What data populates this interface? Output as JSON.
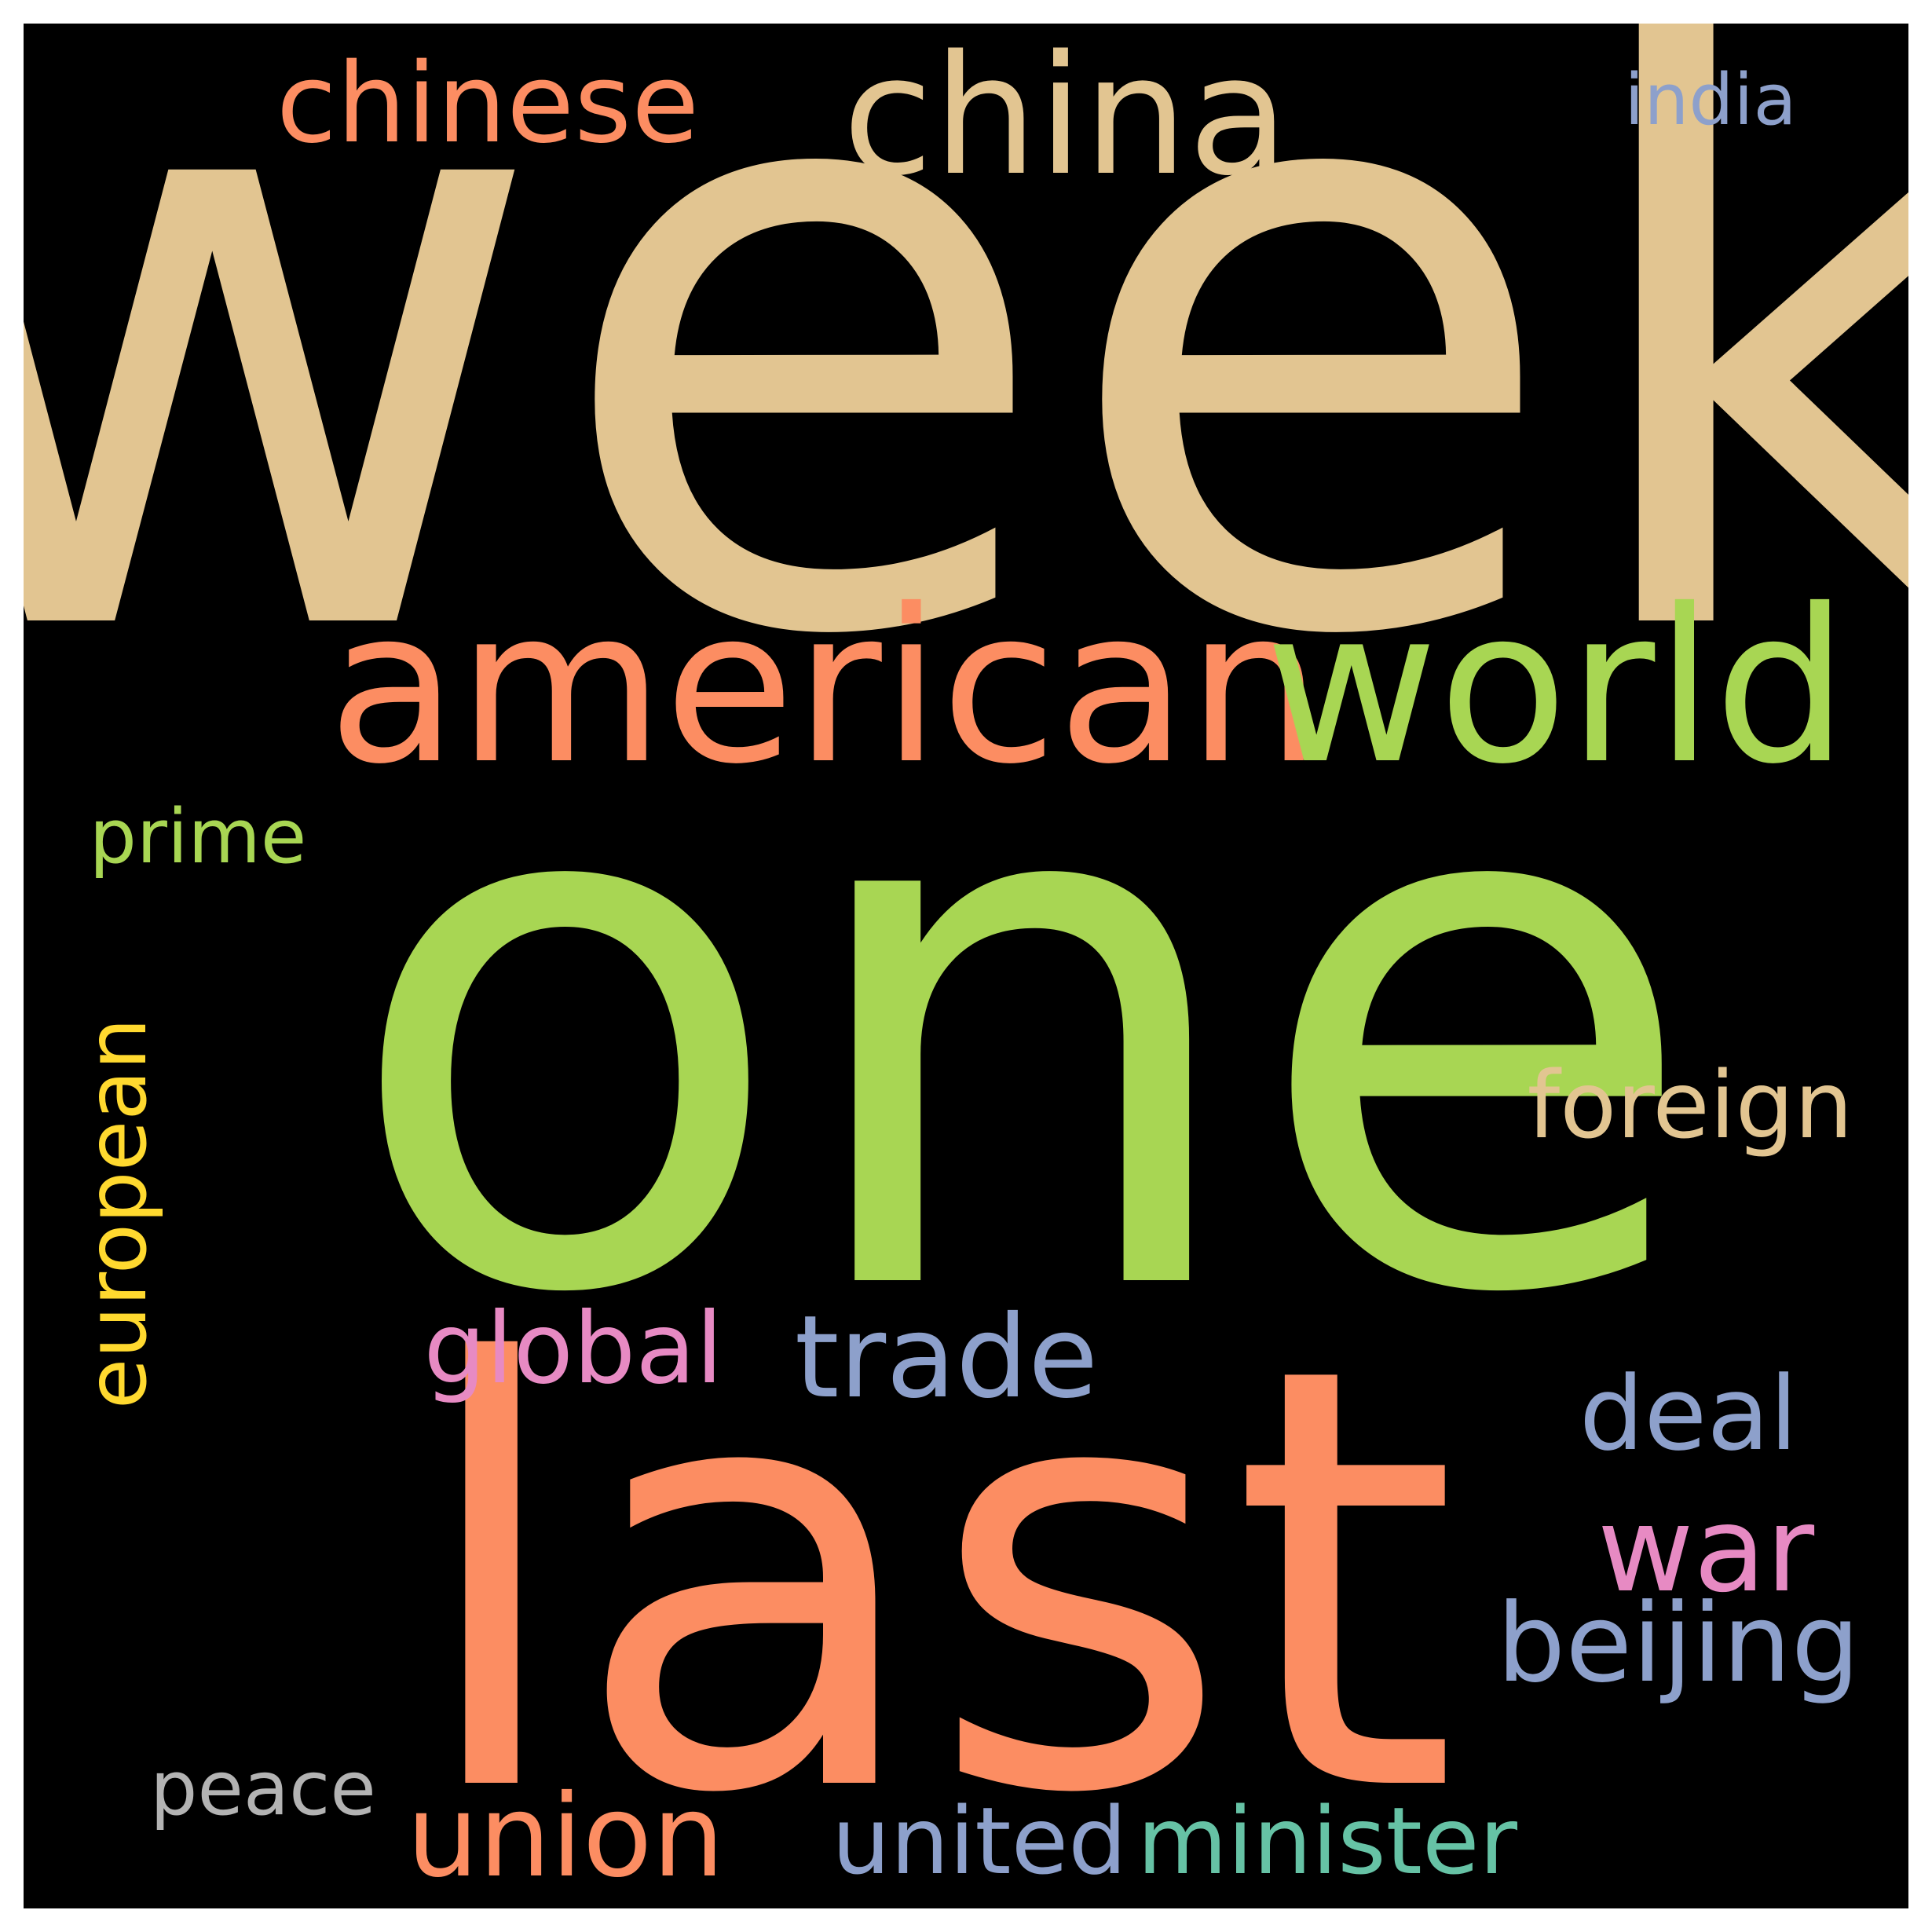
{
  "word_cloud": {
    "background": "#000000",
    "words": [
      {
        "text": "week",
        "color": "#E2C591"
      },
      {
        "text": "one",
        "color": "#A8D653"
      },
      {
        "text": "last",
        "color": "#FC8D62"
      },
      {
        "text": "american",
        "color": "#FC8D62"
      },
      {
        "text": "world",
        "color": "#A8D653"
      },
      {
        "text": "china",
        "color": "#E2C591"
      },
      {
        "text": "chinese",
        "color": "#FC8D62"
      },
      {
        "text": "india",
        "color": "#8DA0CB"
      },
      {
        "text": "prime",
        "color": "#A8D653"
      },
      {
        "text": "foreign",
        "color": "#E2C591"
      },
      {
        "text": "european",
        "color": "#FFD92F"
      },
      {
        "text": "global",
        "color": "#E78AC3"
      },
      {
        "text": "trade",
        "color": "#8DA0CB"
      },
      {
        "text": "deal",
        "color": "#8DA0CB"
      },
      {
        "text": "war",
        "color": "#E78AC3"
      },
      {
        "text": "beijing",
        "color": "#8DA0CB"
      },
      {
        "text": "peace",
        "color": "#B3B3B3"
      },
      {
        "text": "union",
        "color": "#FC8D62"
      },
      {
        "text": "united",
        "color": "#8DA0CB"
      },
      {
        "text": "minister",
        "color": "#66C2A5"
      }
    ]
  }
}
